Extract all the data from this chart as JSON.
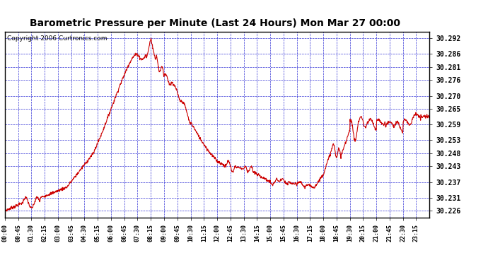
{
  "title": "Barometric Pressure per Minute (Last 24 Hours) Mon Mar 27 00:00",
  "copyright": "Copyright 2006 Curtronics.com",
  "ylabel_values": [
    30.226,
    30.231,
    30.237,
    30.243,
    30.248,
    30.253,
    30.259,
    30.265,
    30.27,
    30.276,
    30.281,
    30.286,
    30.292
  ],
  "ymin": 30.2235,
  "ymax": 30.2945,
  "xtick_labels": [
    "00:00",
    "00:45",
    "01:30",
    "02:15",
    "03:00",
    "03:45",
    "04:30",
    "05:15",
    "06:00",
    "06:45",
    "07:30",
    "08:15",
    "09:00",
    "09:45",
    "10:30",
    "11:15",
    "12:00",
    "12:45",
    "13:30",
    "14:15",
    "15:00",
    "15:45",
    "16:30",
    "17:15",
    "18:00",
    "18:45",
    "19:30",
    "20:15",
    "21:00",
    "21:45",
    "22:30",
    "23:15"
  ],
  "line_color": "#cc0000",
  "grid_color": "#0000cc",
  "bg_color": "#ffffff",
  "title_fontsize": 10,
  "copyright_fontsize": 6.5
}
